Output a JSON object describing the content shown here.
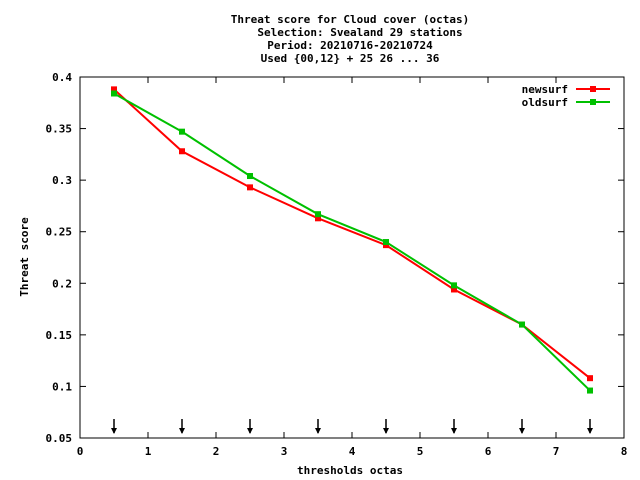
{
  "chart_data": {
    "type": "line",
    "title_lines": [
      "Threat score  for Cloud cover (octas)",
      "Selection: Svealand     29 stations",
      "Period: 20210716-20210724",
      "Used {00,12} + 25 26 ... 36"
    ],
    "xlabel": "thresholds octas",
    "ylabel": "Threat score",
    "xlim": [
      0,
      8
    ],
    "ylim": [
      0.05,
      0.4
    ],
    "x_ticks": [
      "0",
      "1",
      "2",
      "3",
      "4",
      "5",
      "6",
      "7",
      "8"
    ],
    "y_ticks": [
      "0.05",
      "0.1",
      "0.15",
      "0.2",
      "0.25",
      "0.3",
      "0.35",
      "0.4"
    ],
    "x_tick_values": [
      0,
      1,
      2,
      3,
      4,
      5,
      6,
      7,
      8
    ],
    "y_tick_values": [
      0.05,
      0.1,
      0.15,
      0.2,
      0.25,
      0.3,
      0.35,
      0.4
    ],
    "legend_position": "top-right",
    "grid": false,
    "x": [
      0.5,
      1.5,
      2.5,
      3.5,
      4.5,
      5.5,
      6.5,
      7.5
    ],
    "arrow_x": [
      0.5,
      1.5,
      2.5,
      3.5,
      4.5,
      5.5,
      6.5,
      7.5
    ],
    "series": [
      {
        "name": "newsurf",
        "color": "#ff0000",
        "values": [
          0.388,
          0.328,
          0.293,
          0.263,
          0.237,
          0.194,
          0.16,
          0.108
        ]
      },
      {
        "name": "oldsurf",
        "color": "#00c000",
        "values": [
          0.384,
          0.347,
          0.304,
          0.267,
          0.24,
          0.198,
          0.16,
          0.096
        ]
      }
    ]
  }
}
